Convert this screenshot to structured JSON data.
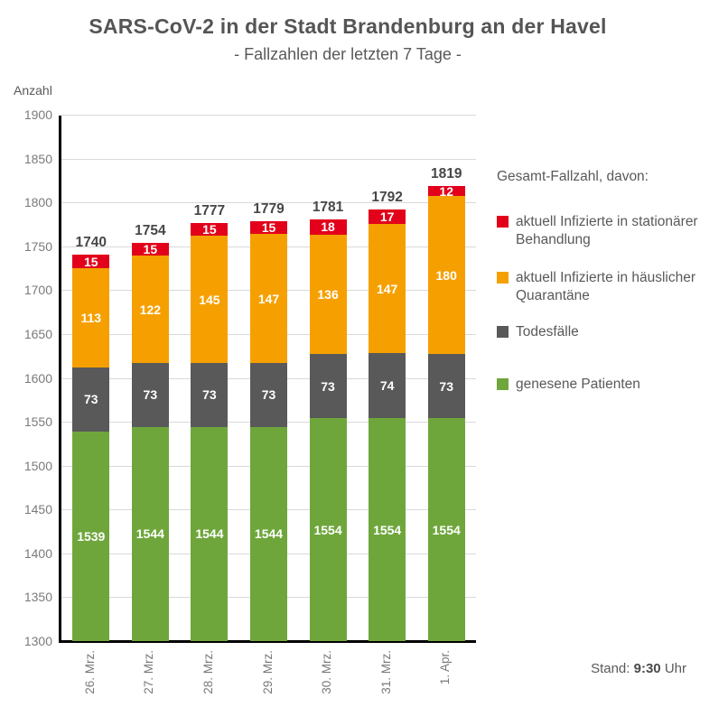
{
  "page": {
    "title": "SARS-CoV-2 in der Stadt Brandenburg an der Havel",
    "subtitle": "- Fallzahlen der letzten 7 Tage -",
    "status_label": "Stand:",
    "status_time": "9:30",
    "status_unit": "Uhr"
  },
  "legend": {
    "header": "Gesamt-Fallzahl, davon:",
    "items": [
      {
        "label": "aktuell Infizierte in stationärer Behandlung",
        "color": "#e2001a",
        "gap": "gap-a"
      },
      {
        "label": "aktuell Infizierte in häuslicher Quarantäne",
        "color": "#f5a000",
        "gap": "gap-b"
      },
      {
        "label": "Todesfälle",
        "color": "#595959",
        "gap": "gap-c"
      },
      {
        "label": "genesene Patienten",
        "color": "#6fa63c",
        "gap": ""
      }
    ]
  },
  "chart_data": {
    "type": "bar",
    "stacked": true,
    "title": "SARS-CoV-2 in der Stadt Brandenburg an der Havel",
    "subtitle": "- Fallzahlen der letzten 7 Tage -",
    "ylabel": "Anzahl",
    "xlabel": "",
    "ylim": [
      1300,
      1900
    ],
    "ytick_step": 50,
    "grid": true,
    "legend_position": "right",
    "categories": [
      "26. Mrz.",
      "27. Mrz.",
      "28. Mrz.",
      "29. Mrz.",
      "30. Mrz.",
      "31. Mrz.",
      "1. Apr."
    ],
    "series": [
      {
        "name": "genesene Patienten",
        "color": "#6fa63c",
        "cumulative_from_zero": true,
        "values": [
          1539,
          1544,
          1544,
          1544,
          1554,
          1554,
          1554
        ]
      },
      {
        "name": "Todesfälle",
        "color": "#595959",
        "values": [
          73,
          73,
          73,
          73,
          73,
          74,
          73
        ]
      },
      {
        "name": "aktuell Infizierte in häuslicher Quarantäne",
        "color": "#f5a000",
        "values": [
          113,
          122,
          145,
          147,
          136,
          147,
          180
        ]
      },
      {
        "name": "aktuell Infizierte in stationärer Behandlung",
        "color": "#e2001a",
        "values": [
          15,
          15,
          15,
          15,
          18,
          17,
          12
        ]
      }
    ],
    "totals": [
      1740,
      1754,
      1777,
      1779,
      1781,
      1792,
      1819
    ],
    "colors": {
      "grid": "#d9d9d9",
      "axis": "#000000",
      "tick_text": "#7a7a7a",
      "title_text": "#555555",
      "total_text": "#474747",
      "segment_text": "#ffffff"
    }
  }
}
